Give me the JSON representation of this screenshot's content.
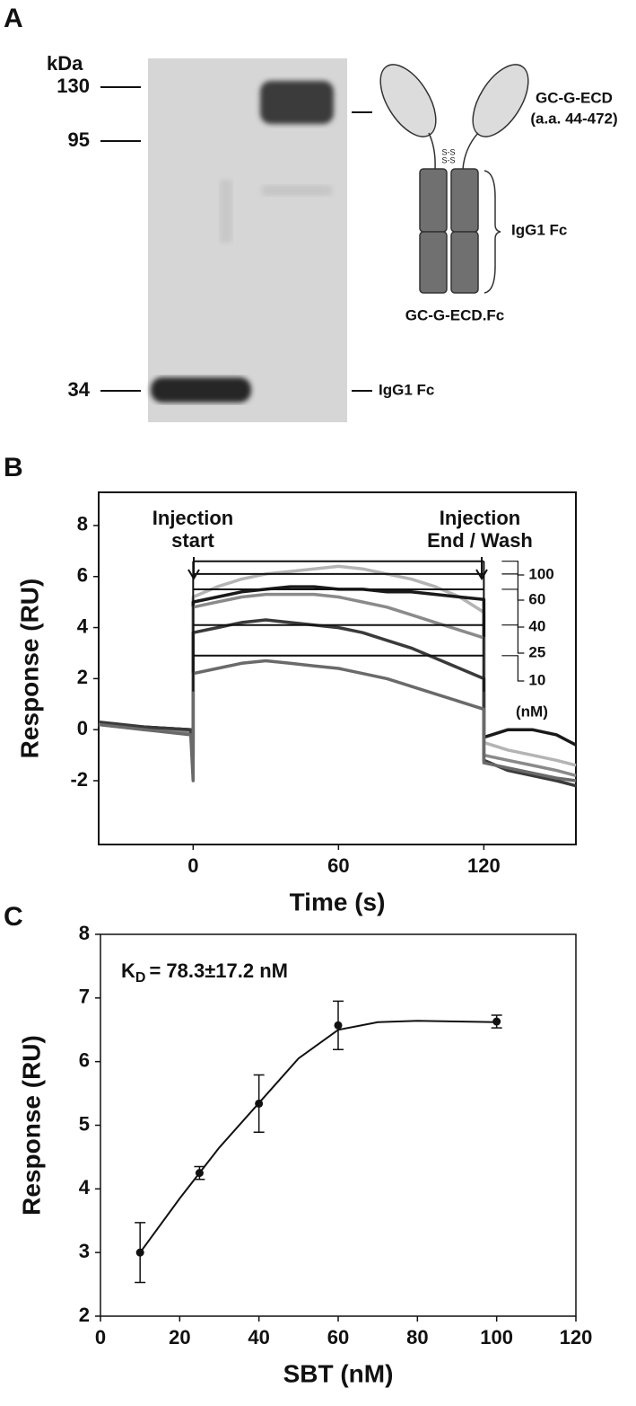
{
  "gel": {
    "panel": "A",
    "unit": "kDa",
    "markers": [
      130,
      95,
      34
    ],
    "band_label": "IgG1 Fc",
    "diagram": {
      "head": "GC-G-ECD",
      "residues": "(a.a. 44-472)",
      "bond": "S-S",
      "fc": "IgG1 Fc",
      "name": "GC-G-ECD.Fc"
    }
  },
  "chart_data": [
    {
      "type": "line",
      "panel": "B",
      "xlabel": "Time (s)",
      "ylabel": "Response (RU)",
      "xlim": [
        -39,
        158
      ],
      "ylim": [
        -4.5,
        9.3
      ],
      "xticks": [
        0,
        60,
        120
      ],
      "yticks": [
        -2,
        0,
        2,
        4,
        6,
        8
      ],
      "annotations": [
        [
          "Injection",
          "start"
        ],
        [
          "Injection",
          "End / Wash"
        ]
      ],
      "legend_title": "(nM)",
      "x": [
        -39,
        -20,
        -1,
        0,
        0,
        10,
        20,
        30,
        40,
        50,
        60,
        70,
        80,
        90,
        100,
        110,
        120,
        120,
        130,
        140,
        150,
        158
      ],
      "series": [
        {
          "name": "100",
          "color": "#b4b4b4",
          "plateau": 6.6,
          "values": [
            0.3,
            0.1,
            0,
            -1.2,
            5.2,
            5.6,
            5.9,
            6.1,
            6.2,
            6.3,
            6.4,
            6.3,
            6.1,
            5.9,
            5.6,
            5.2,
            4.6,
            -0.5,
            -0.8,
            -1.0,
            -1.2,
            -1.4
          ]
        },
        {
          "name": "60",
          "color": "#1a1a1a",
          "plateau": 6.1,
          "values": [
            0.2,
            0.1,
            0,
            -0.5,
            5.0,
            5.2,
            5.4,
            5.5,
            5.6,
            5.6,
            5.5,
            5.5,
            5.4,
            5.4,
            5.3,
            5.2,
            5.1,
            -0.3,
            0,
            0,
            -0.2,
            -0.6
          ]
        },
        {
          "name": "40",
          "color": "#8a8a8a",
          "plateau": 5.5,
          "values": [
            0.2,
            0,
            -0.1,
            -1.5,
            4.8,
            5.0,
            5.2,
            5.3,
            5.3,
            5.3,
            5.2,
            5.0,
            4.8,
            4.5,
            4.2,
            3.9,
            3.6,
            -1.0,
            -1.2,
            -1.4,
            -1.6,
            -1.8
          ]
        },
        {
          "name": "25",
          "color": "#3a3a3a",
          "plateau": 4.1,
          "values": [
            0.3,
            0.1,
            0,
            -1.0,
            3.8,
            4.0,
            4.2,
            4.3,
            4.2,
            4.1,
            4.0,
            3.8,
            3.5,
            3.2,
            2.8,
            2.4,
            2.0,
            -1.2,
            -1.6,
            -1.8,
            -2.0,
            -2.2
          ]
        },
        {
          "name": "10",
          "color": "#6a6a6a",
          "plateau": 2.9,
          "values": [
            0.2,
            0,
            -0.2,
            -2.0,
            2.2,
            2.4,
            2.6,
            2.7,
            2.6,
            2.5,
            2.4,
            2.2,
            2.0,
            1.7,
            1.4,
            1.1,
            0.8,
            -1.3,
            -1.5,
            -1.7,
            -1.9,
            -2.0
          ]
        }
      ]
    },
    {
      "type": "scatter",
      "panel": "C",
      "xlabel": "SBT (nM)",
      "ylabel": "Response (RU)",
      "xlim": [
        0,
        120
      ],
      "ylim": [
        2,
        8
      ],
      "xticks": [
        0,
        20,
        40,
        60,
        80,
        100,
        120
      ],
      "yticks": [
        2,
        3,
        4,
        5,
        6,
        7,
        8
      ],
      "annotation": {
        "symbol": "K",
        "subscript": "D",
        "text": "= 78.3±17.2 nM"
      },
      "color": "#111111",
      "x": [
        10,
        25,
        40,
        60,
        100
      ],
      "values": [
        3.0,
        4.25,
        5.34,
        6.57,
        6.63
      ],
      "errors": [
        0.47,
        0.1,
        0.45,
        0.38,
        0.1
      ],
      "fit": {
        "x": [
          10,
          20,
          30,
          40,
          50,
          60,
          70,
          80,
          90,
          100
        ],
        "values": [
          3.0,
          3.85,
          4.65,
          5.35,
          6.05,
          6.5,
          6.62,
          6.64,
          6.63,
          6.62
        ]
      }
    }
  ]
}
